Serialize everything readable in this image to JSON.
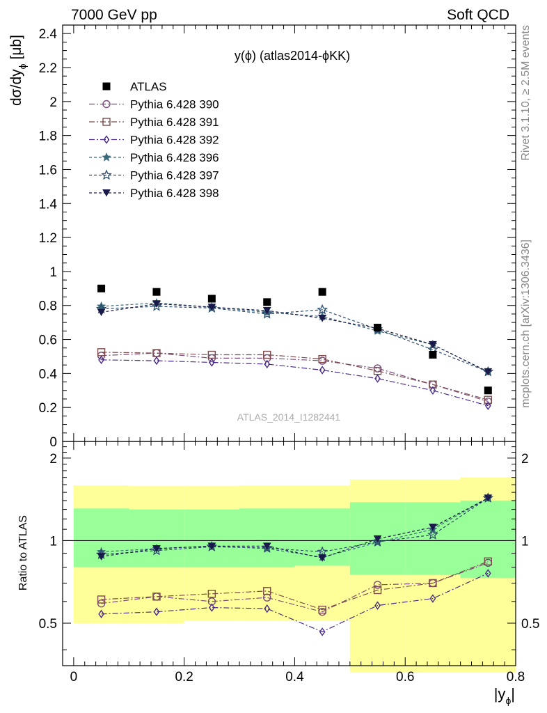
{
  "header": {
    "energy": "7000 GeV pp",
    "process": "Soft QCD"
  },
  "side_text": {
    "rivet": "Rivet 3.1.10, ≥ 2.5M events",
    "mcplots": "mcplots.cern.ch [arXiv:1306.3436]"
  },
  "chart_data": {
    "type": "scatter",
    "title": "y(ϕ) (atlas2014-ϕKK)",
    "watermark": "ATLAS_2014_I1282441",
    "xlabel": "|y",
    "xlabel_sub": "ϕ",
    "xlabel_end": "|",
    "ylabel": "dσ/dy",
    "ylabel_sub": "ϕ",
    "ylabel_unit": "[μb]",
    "ratio_ylabel": "Ratio to ATLAS",
    "xlim": [
      -0.02,
      0.8
    ],
    "ylim": [
      0,
      2.45
    ],
    "ratio_ylim": [
      0.35,
      2.3
    ],
    "x_ticks": [
      "0",
      "0.2",
      "0.4",
      "0.6",
      "0.8"
    ],
    "y_ticks": [
      "0",
      "0.2",
      "0.4",
      "0.6",
      "0.8",
      "1",
      "1.2",
      "1.4",
      "1.6",
      "1.8",
      "2",
      "2.2",
      "2.4"
    ],
    "ratio_ticks": [
      "0.5",
      "1",
      "2"
    ],
    "x": [
      0.05,
      0.15,
      0.25,
      0.35,
      0.45,
      0.55,
      0.65,
      0.75
    ],
    "bins": [
      [
        0.0,
        0.1
      ],
      [
        0.1,
        0.2
      ],
      [
        0.2,
        0.3
      ],
      [
        0.3,
        0.4
      ],
      [
        0.4,
        0.5
      ],
      [
        0.5,
        0.6
      ],
      [
        0.6,
        0.7
      ],
      [
        0.7,
        0.8
      ]
    ],
    "data": {
      "name": "ATLAS",
      "values": [
        0.9,
        0.88,
        0.84,
        0.82,
        0.88,
        0.67,
        0.51,
        0.3
      ],
      "band_inner": [
        [
          0.8,
          1.31
        ],
        [
          0.8,
          1.3
        ],
        [
          0.8,
          1.3
        ],
        [
          0.8,
          1.31
        ],
        [
          0.81,
          1.31
        ],
        [
          0.75,
          1.38
        ],
        [
          0.75,
          1.38
        ],
        [
          0.73,
          1.4
        ]
      ],
      "band_outer": [
        [
          0.5,
          1.59
        ],
        [
          0.5,
          1.58
        ],
        [
          0.51,
          1.58
        ],
        [
          0.51,
          1.59
        ],
        [
          0.51,
          1.59
        ],
        [
          0.33,
          1.67
        ],
        [
          0.33,
          1.67
        ],
        [
          0.33,
          1.7
        ]
      ]
    },
    "series": [
      {
        "name": "Pythia 6.428 390",
        "color": "#7b4a7e",
        "marker": "circle-open",
        "dash": "8,3,2,3",
        "values": [
          0.505,
          0.52,
          0.49,
          0.49,
          0.475,
          0.43,
          0.335,
          0.235
        ]
      },
      {
        "name": "Pythia 6.428 391",
        "color": "#7b4a4a",
        "marker": "square-open",
        "dash": "8,3,2,3",
        "values": [
          0.525,
          0.52,
          0.51,
          0.51,
          0.485,
          0.415,
          0.335,
          0.245
        ]
      },
      {
        "name": "Pythia 6.428 392",
        "color": "#4a2a86",
        "marker": "diamond-open",
        "dash": "8,3,2,3",
        "values": [
          0.48,
          0.475,
          0.465,
          0.455,
          0.42,
          0.37,
          0.3,
          0.21
        ]
      },
      {
        "name": "Pythia 6.428 396",
        "color": "#3a6a7a",
        "marker": "star-filled",
        "dash": "4,3",
        "values": [
          0.795,
          0.815,
          0.79,
          0.76,
          0.735,
          0.65,
          0.57,
          0.41
        ]
      },
      {
        "name": "Pythia 6.428 397",
        "color": "#2a4a6a",
        "marker": "star-open",
        "dash": "4,3",
        "values": [
          0.78,
          0.795,
          0.785,
          0.75,
          0.775,
          0.66,
          0.54,
          0.41
        ]
      },
      {
        "name": "Pythia 6.428 398",
        "color": "#1a1a4a",
        "marker": "triangle-down",
        "dash": "4,3",
        "values": [
          0.76,
          0.81,
          0.79,
          0.77,
          0.725,
          0.665,
          0.57,
          0.41
        ]
      }
    ],
    "ratios": [
      [
        0.59,
        0.625,
        0.6,
        0.62,
        0.55,
        0.69,
        0.7,
        0.83
      ],
      [
        0.61,
        0.625,
        0.64,
        0.655,
        0.56,
        0.66,
        0.7,
        0.84
      ],
      [
        0.54,
        0.55,
        0.57,
        0.565,
        0.465,
        0.58,
        0.615,
        0.76
      ],
      [
        0.91,
        0.935,
        0.955,
        0.935,
        0.87,
        0.985,
        1.1,
        1.43
      ],
      [
        0.89,
        0.92,
        0.95,
        0.94,
        0.91,
        0.99,
        1.05,
        1.43
      ],
      [
        0.875,
        0.935,
        0.955,
        0.955,
        0.865,
        1.015,
        1.12,
        1.43
      ]
    ],
    "legend_position": "top-left",
    "grid": false
  }
}
